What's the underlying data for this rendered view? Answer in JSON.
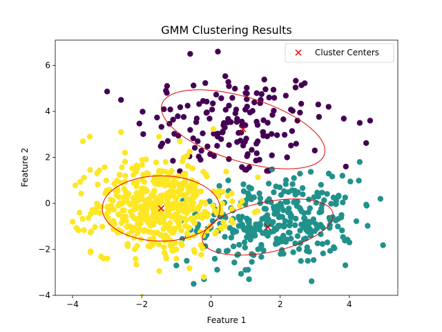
{
  "chart_data": {
    "type": "scatter",
    "title": "GMM Clustering Results",
    "xlabel": "Feature 1",
    "ylabel": "Feature 2",
    "xlim": [
      -4.5,
      5.4
    ],
    "ylim": [
      -4.0,
      7.1
    ],
    "xticks": [
      -4,
      -2,
      0,
      2,
      4
    ],
    "yticks": [
      -4,
      -2,
      0,
      2,
      4,
      6
    ],
    "xtick_labels": [
      "−4",
      "−2",
      "0",
      "2",
      "4"
    ],
    "ytick_labels": [
      "−4",
      "−2",
      "0",
      "2",
      "4",
      "6"
    ],
    "grid": false,
    "legend": {
      "position": "top-right",
      "entries": [
        "Cluster Centers"
      ]
    },
    "colors": {
      "cluster_purple": "#440154",
      "cluster_teal": "#21918c",
      "cluster_yellow": "#fde725",
      "center_marker": "#e00000",
      "ellipse": "#e00000"
    },
    "clusters": [
      {
        "color": "#440154",
        "center": [
          0.93,
          3.22
        ],
        "point_count": 160,
        "mean": [
          0.6,
          3.5
        ],
        "std": [
          1.4,
          1.2
        ],
        "sample_points": [
          [
            -2.6,
            4.5
          ],
          [
            -1.3,
            4.9
          ],
          [
            -0.6,
            6.5
          ],
          [
            0.2,
            6.6
          ],
          [
            1.0,
            4.8
          ],
          [
            1.5,
            3.1
          ],
          [
            2.5,
            3.6
          ],
          [
            3.1,
            4.3
          ],
          [
            3.4,
            4.2
          ],
          [
            4.3,
            3.5
          ],
          [
            4.6,
            3.6
          ],
          [
            -0.3,
            1.9
          ],
          [
            1.4,
            1.9
          ],
          [
            2.2,
            2.0
          ],
          [
            3.0,
            2.3
          ],
          [
            3.9,
            1.6
          ]
        ]
      },
      {
        "color": "#21918c",
        "center": [
          1.64,
          -1.03
        ],
        "point_count": 330,
        "mean": [
          1.9,
          -0.8
        ],
        "std": [
          1.1,
          0.9
        ],
        "sample_points": [
          [
            -1.0,
            -2.7
          ],
          [
            -0.7,
            -2.5
          ],
          [
            -0.2,
            -3.3
          ],
          [
            -0.5,
            -3.5
          ],
          [
            0.5,
            1.0
          ],
          [
            1.1,
            0.7
          ],
          [
            2.4,
            1.1
          ],
          [
            3.8,
            1.2
          ],
          [
            4.3,
            1.8
          ],
          [
            4.9,
            0.2
          ],
          [
            4.5,
            -0.1
          ],
          [
            3.9,
            -1.6
          ],
          [
            4.0,
            -1.7
          ],
          [
            2.8,
            -2.5
          ],
          [
            1.1,
            -3.3
          ]
        ]
      },
      {
        "color": "#fde725",
        "center": [
          -1.44,
          -0.22
        ],
        "point_count": 500,
        "mean": [
          -1.5,
          -0.2
        ],
        "std": [
          0.95,
          1.0
        ],
        "sample_points": [
          [
            -4.0,
            -0.8
          ],
          [
            -3.8,
            -0.4
          ],
          [
            -3.7,
            2.7
          ],
          [
            -3.5,
            2.9
          ],
          [
            -2.6,
            3.1
          ],
          [
            -3.1,
            -2.4
          ],
          [
            -2.2,
            -2.0
          ],
          [
            -1.0,
            -2.4
          ],
          [
            -1.3,
            -2.3
          ],
          [
            0.3,
            -0.4
          ],
          [
            0.9,
            0.1
          ],
          [
            0.4,
            -1.0
          ],
          [
            -0.9,
            2.7
          ],
          [
            -1.5,
            2.9
          ]
        ]
      }
    ],
    "covariance_ellipses": [
      {
        "center": [
          0.93,
          3.22
        ],
        "major_axis_length": 5.23,
        "minor_axis_length": 2.62,
        "angle_deg": -29.5
      },
      {
        "center": [
          1.64,
          -1.03
        ],
        "major_axis_length": 3.98,
        "minor_axis_length": 2.11,
        "angle_deg": 21.5
      },
      {
        "center": [
          -1.44,
          -0.22
        ],
        "major_axis_length": 3.4,
        "minor_axis_length": 2.84,
        "angle_deg": 0
      }
    ]
  }
}
